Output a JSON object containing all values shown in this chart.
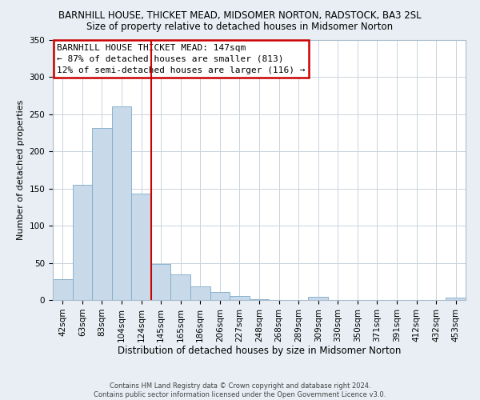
{
  "title": "BARNHILL HOUSE, THICKET MEAD, MIDSOMER NORTON, RADSTOCK, BA3 2SL",
  "subtitle": "Size of property relative to detached houses in Midsomer Norton",
  "xlabel": "Distribution of detached houses by size in Midsomer Norton",
  "ylabel": "Number of detached properties",
  "bar_labels": [
    "42sqm",
    "63sqm",
    "83sqm",
    "104sqm",
    "124sqm",
    "145sqm",
    "165sqm",
    "186sqm",
    "206sqm",
    "227sqm",
    "248sqm",
    "268sqm",
    "289sqm",
    "309sqm",
    "330sqm",
    "350sqm",
    "371sqm",
    "391sqm",
    "412sqm",
    "432sqm",
    "453sqm"
  ],
  "bar_values": [
    28,
    155,
    232,
    261,
    143,
    49,
    35,
    18,
    11,
    5,
    1,
    0,
    0,
    4,
    0,
    0,
    0,
    0,
    0,
    0,
    3
  ],
  "bar_color": "#c8daea",
  "bar_edge_color": "#7baac8",
  "vline_color": "#cc0000",
  "vline_index": 5,
  "annotation_text": "BARNHILL HOUSE THICKET MEAD: 147sqm\n← 87% of detached houses are smaller (813)\n12% of semi-detached houses are larger (116) →",
  "annotation_box_edgecolor": "#cc0000",
  "ylim": [
    0,
    350
  ],
  "yticks": [
    0,
    50,
    100,
    150,
    200,
    250,
    300,
    350
  ],
  "footer_line1": "Contains HM Land Registry data © Crown copyright and database right 2024.",
  "footer_line2": "Contains public sector information licensed under the Open Government Licence v3.0.",
  "bg_color": "#e8eef4",
  "plot_bg_color": "#ffffff",
  "grid_color": "#c8d4de",
  "title_fontsize": 8.5,
  "subtitle_fontsize": 8.5,
  "ylabel_fontsize": 8,
  "xlabel_fontsize": 8.5,
  "tick_fontsize": 7.5,
  "annotation_fontsize": 8,
  "footer_fontsize": 6
}
